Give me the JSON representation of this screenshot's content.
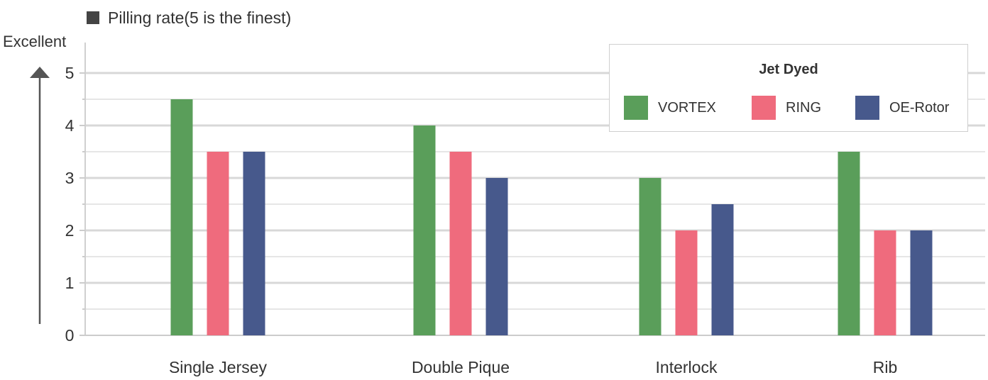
{
  "chart_data": {
    "type": "bar",
    "title": "Pilling rate(5 is the finest)",
    "ylabel": "Excellent",
    "xlabel": "",
    "categories": [
      "Single Jersey",
      "Double Pique",
      "Interlock",
      "Rib"
    ],
    "yticks": [
      0,
      1,
      2,
      3,
      4,
      5
    ],
    "ylim": [
      0,
      5
    ],
    "grid": true,
    "legend": {
      "title": "Jet Dyed",
      "placement": "top-right"
    },
    "series": [
      {
        "name": "VORTEX",
        "color": "#5a9e5a",
        "values": [
          4.5,
          4,
          3,
          3.5
        ]
      },
      {
        "name": "RING",
        "color": "#ef6b7d",
        "values": [
          3.5,
          3.5,
          2,
          2
        ]
      },
      {
        "name": "OE-Rotor",
        "color": "#47598c",
        "values": [
          3.5,
          3,
          2.5,
          2
        ]
      }
    ]
  },
  "icons": {
    "title_marker": "square-icon",
    "axis_arrow": "arrow-up-icon"
  }
}
